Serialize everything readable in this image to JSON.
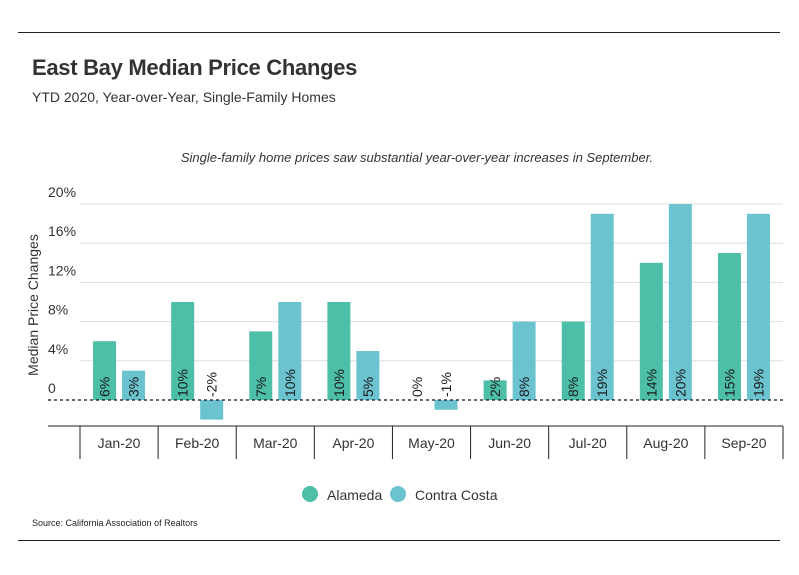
{
  "header": {
    "title": "East Bay Median Price Changes",
    "subtitle": "YTD 2020, Year-over-Year, Single-Family Homes"
  },
  "footer": {
    "source": "Source:  California Association of Realtors"
  },
  "chart_data": {
    "type": "bar",
    "annotation": "Single-family home prices saw substantial year-over-year increases in September.",
    "ylabel": "Median Price Changes",
    "xlabel": "",
    "ylim": [
      -2,
      20
    ],
    "yticks": [
      0,
      4,
      8,
      12,
      16,
      20
    ],
    "ytick_labels": [
      "0",
      "4%",
      "8%",
      "12%",
      "16%",
      "20%"
    ],
    "grid": true,
    "legend_position": "bottom-center",
    "categories": [
      "Jan-20",
      "Feb-20",
      "Mar-20",
      "Apr-20",
      "May-20",
      "Jun-20",
      "Jul-20",
      "Aug-20",
      "Sep-20"
    ],
    "series": [
      {
        "name": "Alameda",
        "color": "#4dbfa8",
        "values": [
          6,
          10,
          7,
          10,
          0,
          2,
          8,
          14,
          15
        ],
        "labels": [
          "6%",
          "10%",
          "7%",
          "10%",
          "0%",
          "2%",
          "8%",
          "14%",
          "15%"
        ]
      },
      {
        "name": "Contra Costa",
        "color": "#6cc3d0",
        "values": [
          3,
          -2,
          10,
          5,
          -1,
          8,
          19,
          20,
          19
        ],
        "labels": [
          "3%",
          "-2%",
          "10%",
          "5%",
          "-1%",
          "8%",
          "19%",
          "20%",
          "19%"
        ]
      }
    ]
  }
}
